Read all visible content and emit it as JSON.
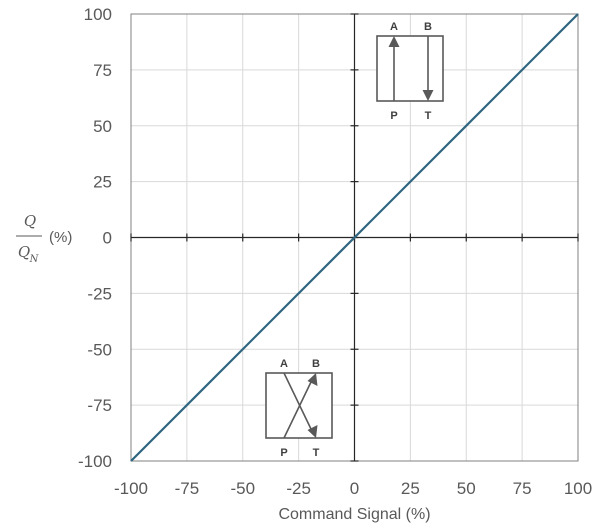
{
  "chart_data": {
    "type": "line",
    "xlabel": "Command Signal (%)",
    "ylabel": {
      "numerator": "Q",
      "denominator": "Q",
      "denominator_subscript": "N",
      "unit": "(%)"
    },
    "xlim": [
      -100,
      100
    ],
    "ylim": [
      -100,
      100
    ],
    "xticks": [
      "-100",
      "-75",
      "-50",
      "-25",
      "0",
      "25",
      "50",
      "75",
      "100"
    ],
    "yticks": [
      "100",
      "75",
      "50",
      "25",
      "0",
      "-25",
      "-50",
      "-75",
      "-100"
    ],
    "grid": true,
    "series": [
      {
        "x": [
          -100,
          100
        ],
        "y": [
          -100,
          100
        ],
        "color": "#2e6580"
      }
    ],
    "annotations": {
      "positive_valve": {
        "ports": [
          "A",
          "B",
          "P",
          "T"
        ]
      },
      "negative_valve": {
        "ports": [
          "A",
          "B",
          "P",
          "T"
        ]
      }
    }
  }
}
